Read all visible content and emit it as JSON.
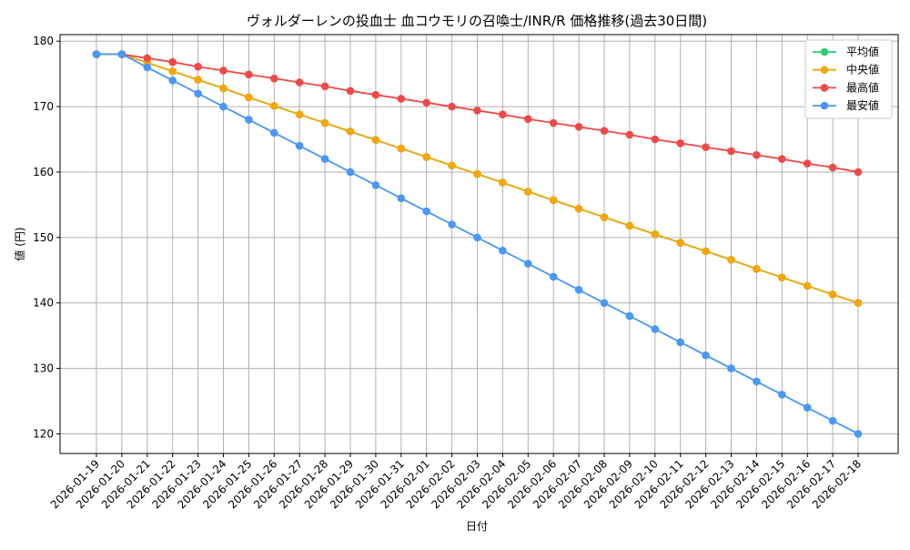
{
  "chart_data": {
    "type": "line",
    "title": "ヴォルダーレンの投血士 血コウモリの召喚士/INR/R 価格推移(過去30日間)",
    "xlabel": "日付",
    "ylabel": "値 (円)",
    "ylim": [
      117,
      181
    ],
    "yticks": [
      120,
      130,
      140,
      150,
      160,
      170,
      180
    ],
    "grid": true,
    "legend_position": "top-right",
    "categories": [
      "2026-01-19",
      "2026-01-20",
      "2026-01-21",
      "2026-01-22",
      "2026-01-23",
      "2026-01-24",
      "2026-01-25",
      "2026-01-26",
      "2026-01-27",
      "2026-01-28",
      "2026-01-29",
      "2026-01-30",
      "2026-01-31",
      "2026-02-01",
      "2026-02-02",
      "2026-02-03",
      "2026-02-04",
      "2026-02-05",
      "2026-02-06",
      "2026-02-07",
      "2026-02-08",
      "2026-02-09",
      "2026-02-10",
      "2026-02-11",
      "2026-02-12",
      "2026-02-13",
      "2026-02-14",
      "2026-02-15",
      "2026-02-16",
      "2026-02-17",
      "2026-02-18"
    ],
    "series": [
      {
        "name": "平均値",
        "color": "#2ecc71",
        "values": [
          178,
          178,
          176.7,
          175.4,
          174.1,
          172.8,
          171.4,
          170.1,
          168.8,
          167.5,
          166.2,
          164.9,
          163.6,
          162.3,
          161.0,
          159.7,
          158.4,
          157.0,
          155.7,
          154.4,
          153.1,
          151.8,
          150.5,
          149.2,
          147.9,
          146.6,
          145.2,
          143.9,
          142.6,
          141.3,
          140.0
        ]
      },
      {
        "name": "中央値",
        "color": "#f5a60a",
        "values": [
          178,
          178,
          176.7,
          175.4,
          174.1,
          172.8,
          171.4,
          170.1,
          168.8,
          167.5,
          166.2,
          164.9,
          163.6,
          162.3,
          161.0,
          159.7,
          158.4,
          157.0,
          155.7,
          154.4,
          153.1,
          151.8,
          150.5,
          149.2,
          147.9,
          146.6,
          145.2,
          143.9,
          142.6,
          141.3,
          140.0
        ]
      },
      {
        "name": "最高値",
        "color": "#f04848",
        "values": [
          178,
          178,
          177.4,
          176.8,
          176.1,
          175.5,
          174.9,
          174.3,
          173.7,
          173.1,
          172.4,
          171.8,
          171.2,
          170.6,
          170.0,
          169.4,
          168.8,
          168.1,
          167.5,
          166.9,
          166.3,
          165.7,
          165.0,
          164.4,
          163.8,
          163.2,
          162.6,
          162.0,
          161.3,
          160.7,
          160.0
        ]
      },
      {
        "name": "最安値",
        "color": "#4a97f5",
        "values": [
          178,
          178,
          176,
          174,
          172,
          170,
          168,
          166,
          164,
          162,
          160,
          158,
          156,
          154,
          152,
          150,
          148,
          146,
          144,
          142,
          140,
          138,
          136,
          134,
          132,
          130,
          128,
          126,
          124,
          122,
          120
        ]
      }
    ]
  }
}
